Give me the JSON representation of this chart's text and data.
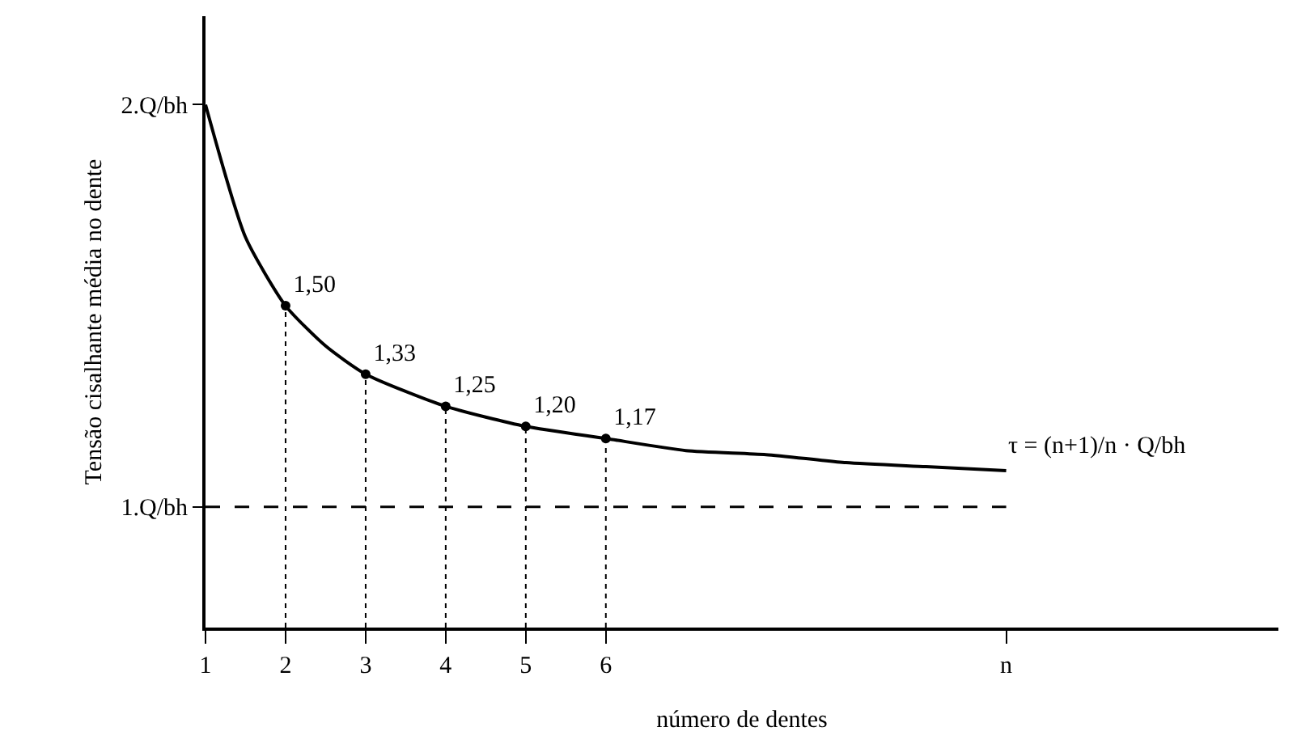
{
  "chart_data": {
    "type": "line",
    "xlabel": "número de dentes",
    "ylabel": "Tensão cisalhante média no dente",
    "xlim": [
      1,
      14.4
    ],
    "ylim": [
      0.7,
      2.22
    ],
    "xticks": [
      1,
      2,
      3,
      4,
      5,
      6,
      {
        "value": 11,
        "label": "n"
      }
    ],
    "yticks": [
      {
        "value": 1,
        "label": "1.Q/bh"
      },
      {
        "value": 2,
        "label": "2.Q/bh"
      }
    ],
    "grid": false,
    "series": [
      {
        "color": "#000000",
        "marker": "none",
        "line_style": "solid",
        "x": [
          1,
          1.5,
          2,
          2.5,
          3,
          4,
          5,
          6,
          7,
          8,
          9,
          10,
          11
        ],
        "values": [
          2,
          1.67,
          1.5,
          1.4,
          1.33,
          1.25,
          1.2,
          1.17,
          1.14,
          1.13,
          1.11,
          1.1,
          1.09
        ]
      },
      {
        "type": "lollipop",
        "color": "#000000",
        "marker": "circle",
        "line_style": "dotted",
        "x": [
          2,
          3,
          4,
          5,
          6
        ],
        "values": [
          1.5,
          1.33,
          1.25,
          1.2,
          1.17
        ],
        "value_labels": [
          "1,50",
          "1,33",
          "1,25",
          "1,20",
          "1,17"
        ]
      }
    ],
    "ref_lines": [
      {
        "axis": "y",
        "value": 1,
        "line_style": "dashed",
        "color": "#000000"
      }
    ],
    "annotations": [
      "τ = (n+1)/n · Q/bh"
    ]
  }
}
